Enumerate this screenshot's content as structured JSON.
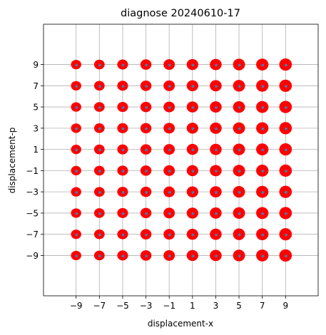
{
  "chart_data": {
    "type": "scatter",
    "title": "diagnose 20240610-17",
    "xlabel": "displacement-x",
    "ylabel": "displacement-p",
    "xlim": [
      -11.8,
      11.8
    ],
    "ylim": [
      -12.8,
      12.8
    ],
    "xticks": [
      -9,
      -7,
      -5,
      -3,
      -1,
      1,
      3,
      5,
      7,
      9
    ],
    "yticks": [
      -9,
      -7,
      -5,
      -3,
      -1,
      1,
      3,
      5,
      7,
      9
    ],
    "xtick_labels": [
      "−9",
      "−7",
      "−5",
      "−3",
      "−1",
      "1",
      "3",
      "5",
      "7",
      "9"
    ],
    "ytick_labels": [
      "−9",
      "−7",
      "−5",
      "−3",
      "−1",
      "1",
      "3",
      "5",
      "7",
      "9"
    ],
    "grid": true,
    "series": [
      {
        "marker": "ellipse",
        "color": "#ff0000",
        "description_x": [
          -9,
          -7,
          -5,
          -3,
          -1,
          1,
          3,
          5,
          7,
          9
        ],
        "description_y": [
          -9,
          -7,
          -5,
          -3,
          -1,
          1,
          3,
          5,
          7,
          9
        ]
      },
      {
        "marker": "dot",
        "color": "#4a78b0"
      }
    ]
  }
}
